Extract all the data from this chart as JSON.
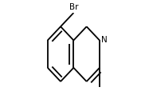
{
  "bg_color": "#ffffff",
  "bond_color": "#000000",
  "text_color": "#000000",
  "lw": 1.3,
  "scale": 1.0,
  "xlim": [
    -0.15,
    1.05
  ],
  "ylim": [
    -0.07,
    1.07
  ],
  "br_label": "Br",
  "n_label": "N",
  "font_size": 7.5,
  "dbo": 0.055,
  "shorten": 0.12
}
